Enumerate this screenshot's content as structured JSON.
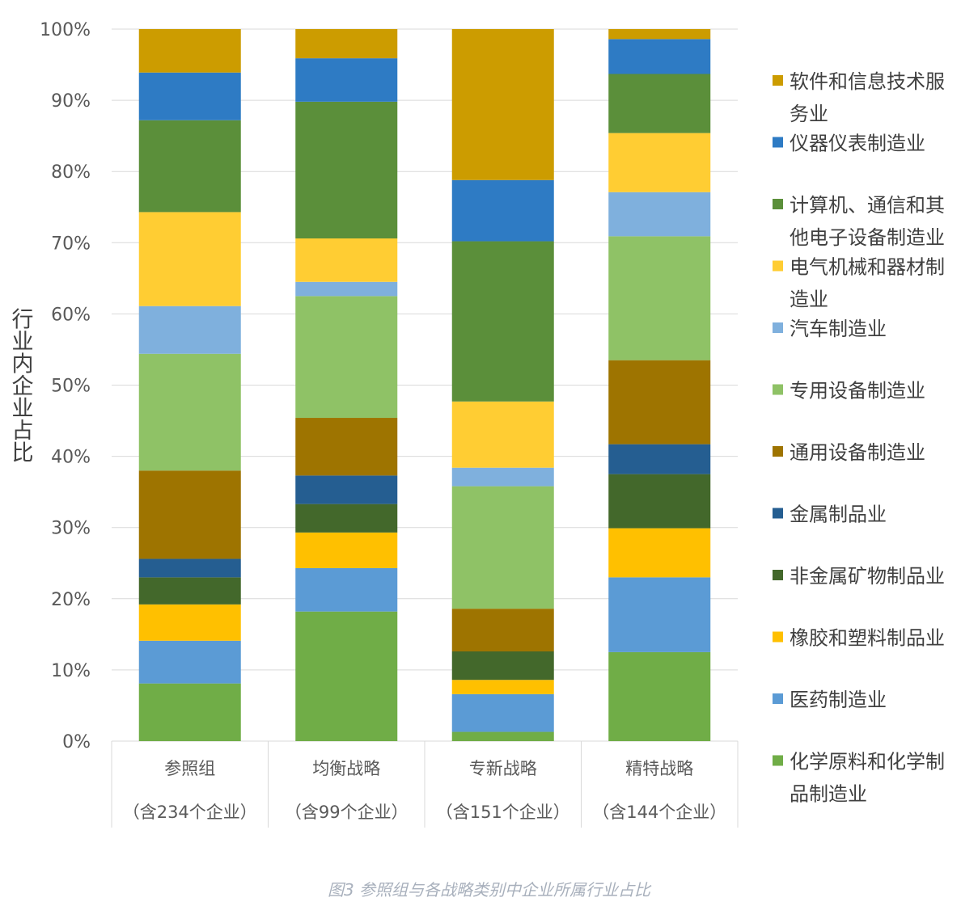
{
  "chart_data": {
    "type": "bar",
    "stacked": true,
    "normalized": true,
    "ylabel": "行业内企业占比",
    "ylim": [
      0,
      100
    ],
    "yticks": [
      "0%",
      "10%",
      "20%",
      "30%",
      "40%",
      "50%",
      "60%",
      "70%",
      "80%",
      "90%",
      "100%"
    ],
    "grid": true,
    "legend_position": "right",
    "categories": [
      {
        "label": "参照组",
        "sublabel": "（含234个企业）"
      },
      {
        "label": "均衡战略",
        "sublabel": "（含99个企业）"
      },
      {
        "label": "专新战略",
        "sublabel": "（含151个企业）"
      },
      {
        "label": "精特战略",
        "sublabel": "（含144个企业）"
      }
    ],
    "series": [
      {
        "name": "化学原料和化学制品制造业",
        "color": "#70ad47",
        "values": [
          8.1,
          18.2,
          1.3,
          12.5
        ]
      },
      {
        "name": "医药制造业",
        "color": "#5b9bd5",
        "values": [
          6.0,
          6.1,
          5.3,
          10.5
        ]
      },
      {
        "name": "橡胶和塑料制品业",
        "color": "#ffc000",
        "values": [
          5.1,
          5.0,
          2.0,
          6.9
        ]
      },
      {
        "name": "非金属矿物制品业",
        "color": "#43682b",
        "values": [
          3.8,
          4.0,
          4.0,
          7.6
        ]
      },
      {
        "name": "金属制品业",
        "color": "#255e91",
        "values": [
          2.6,
          4.0,
          0.0,
          4.2
        ]
      },
      {
        "name": "通用设备制造业",
        "color": "#9e7400",
        "values": [
          12.4,
          8.1,
          6.0,
          11.8
        ]
      },
      {
        "name": "专用设备制造业",
        "color": "#8fc266",
        "values": [
          16.4,
          17.1,
          17.2,
          17.4
        ]
      },
      {
        "name": "汽车制造业",
        "color": "#7fb0dd",
        "values": [
          6.7,
          2.0,
          2.6,
          6.2
        ]
      },
      {
        "name": "电气机械和器材制造业",
        "color": "#ffcd33",
        "values": [
          13.2,
          6.1,
          9.3,
          8.3
        ]
      },
      {
        "name": "计算机、通信和其他电子设备制造业",
        "color": "#5b8f3a",
        "values": [
          12.9,
          19.2,
          22.5,
          8.3
        ]
      },
      {
        "name": "仪器仪表制造业",
        "color": "#2e7bc4",
        "values": [
          6.7,
          6.1,
          8.6,
          4.9
        ]
      },
      {
        "name": "软件和信息技术服务业",
        "color": "#cc9c00",
        "values": [
          6.1,
          4.1,
          21.2,
          1.4
        ]
      }
    ]
  },
  "legend_display": [
    [
      "软件和信息技术服",
      "务业"
    ],
    [
      "仪器仪表制造业"
    ],
    [
      "计算机、通信和其",
      "他电子设备制造业"
    ],
    [
      "电气机械和器材制",
      "造业"
    ],
    [
      "汽车制造业"
    ],
    [
      "专用设备制造业"
    ],
    [
      "通用设备制造业"
    ],
    [
      "金属制品业"
    ],
    [
      "非金属矿物制品业"
    ],
    [
      "橡胶和塑料制品业"
    ],
    [
      "医药制造业"
    ],
    [
      "化学原料和化学制",
      "品制造业"
    ]
  ],
  "caption": "图3 参照组与各战略类别中企业所属行业占比"
}
